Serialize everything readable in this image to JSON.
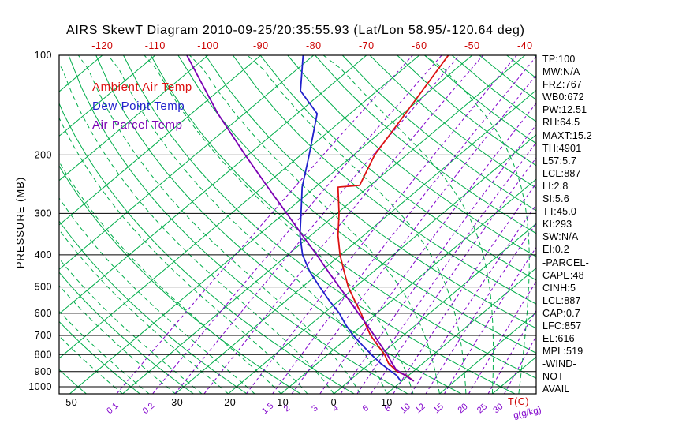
{
  "title": "AIRS SkewT Diagram 2010-09-25/20:35:55.93 (Lat/Lon 58.95/-120.64 deg)",
  "colors": {
    "grid_green": "#00ad4a",
    "mixing_purple": "#8000cc",
    "axis_red": "#cc0000",
    "ambient_red": "#dd1111",
    "dewpoint_blue": "#2020cc",
    "parcel_purple": "#7a00b3",
    "text_black": "#000000"
  },
  "axes": {
    "pressure_axis_title": "PRESSURE (MB)",
    "pressure_ticks": [
      100,
      200,
      300,
      400,
      500,
      600,
      700,
      800,
      900,
      1000
    ],
    "top_temp_ticks": [
      -120,
      -110,
      -100,
      -90,
      -80,
      -70,
      -60,
      -50,
      -40
    ],
    "bottom_temp_ticks": [
      -50,
      -30,
      -20,
      -10,
      0,
      10
    ],
    "temp_unit_label": "T(C)",
    "mixing_ratio_tick_labels": [
      0.1,
      0.2,
      1.5,
      2,
      3,
      4,
      6,
      8,
      10,
      12,
      15,
      20,
      25,
      30
    ],
    "mixing_unit_label": "g(g/kg)"
  },
  "stats_panel": [
    "TP:100",
    "MW:N/A",
    "FRZ:767",
    "WB0:672",
    "PW:12.51",
    "RH:64.5",
    "MAXT:15.2",
    "TH:4901",
    "L57:5.7",
    "LCL:887",
    "LI:2.8",
    "SI:5.6",
    "TT:45.0",
    "KI:293",
    "SW:N/A",
    "EI:0.2",
    "-PARCEL-",
    "CAPE:48",
    "CINH:5",
    "LCL:887",
    "CAP:0.7",
    "LFC:857",
    "EL:616",
    "MPL:519",
    "-WIND-",
    "NOT",
    "AVAIL"
  ],
  "chart_data": {
    "type": "line",
    "variant": "skew-t-log-p",
    "title": "AIRS SkewT Diagram 2010-09-25/20:35:55.93 (Lat/Lon 58.95/-120.64 deg)",
    "y_axis": {
      "label": "PRESSURE (MB)",
      "scale": "log",
      "range_mb": [
        100,
        1050
      ],
      "ticks": [
        100,
        200,
        300,
        400,
        500,
        600,
        700,
        800,
        900,
        1000
      ]
    },
    "x_axis": {
      "label": "T(C)",
      "top_ticks_at_100mb": [
        -120,
        -110,
        -100,
        -90,
        -80,
        -70,
        -60,
        -50,
        -40
      ],
      "bottom_ticks": [
        -50,
        -30,
        -20,
        -10,
        0,
        10
      ],
      "skew_deg": 50
    },
    "series": [
      {
        "id": "ambient",
        "name": "Ambient Air Temp",
        "color": "#dd1111",
        "points_p_mb_t_c": [
          [
            962,
            12.3
          ],
          [
            925,
            9.6
          ],
          [
            900,
            7.0
          ],
          [
            850,
            3.5
          ],
          [
            800,
            0.8
          ],
          [
            750,
            -2.6
          ],
          [
            700,
            -6.2
          ],
          [
            650,
            -9.5
          ],
          [
            600,
            -13.0
          ],
          [
            550,
            -17.0
          ],
          [
            500,
            -21.3
          ],
          [
            450,
            -25.5
          ],
          [
            400,
            -30.1
          ],
          [
            350,
            -34.8
          ],
          [
            300,
            -39.6
          ],
          [
            250,
            -45.7
          ],
          [
            247,
            -42.0
          ],
          [
            200,
            -46.0
          ],
          [
            150,
            -49.5
          ],
          [
            100,
            -54.5
          ]
        ]
      },
      {
        "id": "dewpoint",
        "name": "Dew Point Temp",
        "color": "#2020cc",
        "points_p_mb_t_c": [
          [
            962,
            9.8
          ],
          [
            925,
            7.8
          ],
          [
            900,
            5.9
          ],
          [
            850,
            2.0
          ],
          [
            800,
            -1.7
          ],
          [
            750,
            -5.5
          ],
          [
            700,
            -9.5
          ],
          [
            650,
            -13.3
          ],
          [
            600,
            -17.1
          ],
          [
            550,
            -21.8
          ],
          [
            500,
            -26.7
          ],
          [
            450,
            -32.0
          ],
          [
            400,
            -37.2
          ],
          [
            350,
            -42.0
          ],
          [
            300,
            -46.8
          ],
          [
            250,
            -52.5
          ],
          [
            200,
            -58.4
          ],
          [
            150,
            -66.2
          ],
          [
            128,
            -74.5
          ],
          [
            100,
            -82.0
          ]
        ]
      },
      {
        "id": "parcel",
        "name": "Air Parcel Temp",
        "color": "#7a00b3",
        "points_p_mb_t_c": [
          [
            962,
            12.3
          ],
          [
            887,
            6.3
          ],
          [
            850,
            4.2
          ],
          [
            800,
            1.3
          ],
          [
            750,
            -2.0
          ],
          [
            700,
            -5.5
          ],
          [
            650,
            -9.3
          ],
          [
            600,
            -13.5
          ],
          [
            550,
            -18.0
          ],
          [
            500,
            -23.0
          ],
          [
            450,
            -28.5
          ],
          [
            400,
            -34.5
          ],
          [
            350,
            -41.5
          ],
          [
            300,
            -49.5
          ],
          [
            250,
            -59.0
          ],
          [
            200,
            -70.5
          ],
          [
            150,
            -85.0
          ],
          [
            100,
            -104.0
          ]
        ]
      }
    ],
    "background_lines": {
      "isotherms_c": {
        "from": -160,
        "to": 40,
        "step": 10,
        "style": "solid-green"
      },
      "dry_adiabats_theta_c": {
        "from": -50,
        "to": 180,
        "step": 10,
        "style": "solid-green"
      },
      "moist_adiabats_t0_c": {
        "from": -40,
        "to": 40,
        "step": 5,
        "style": "dashed-green"
      },
      "mixing_ratio_lines_gkg": [
        0.1,
        0.2,
        0.3,
        0.5,
        1,
        1.5,
        2,
        3,
        4,
        5,
        6,
        8,
        10,
        12,
        15,
        20,
        25,
        30
      ],
      "pressure_gridlines_mb": [
        100,
        200,
        300,
        400,
        500,
        600,
        700,
        800,
        900,
        1000
      ]
    }
  }
}
